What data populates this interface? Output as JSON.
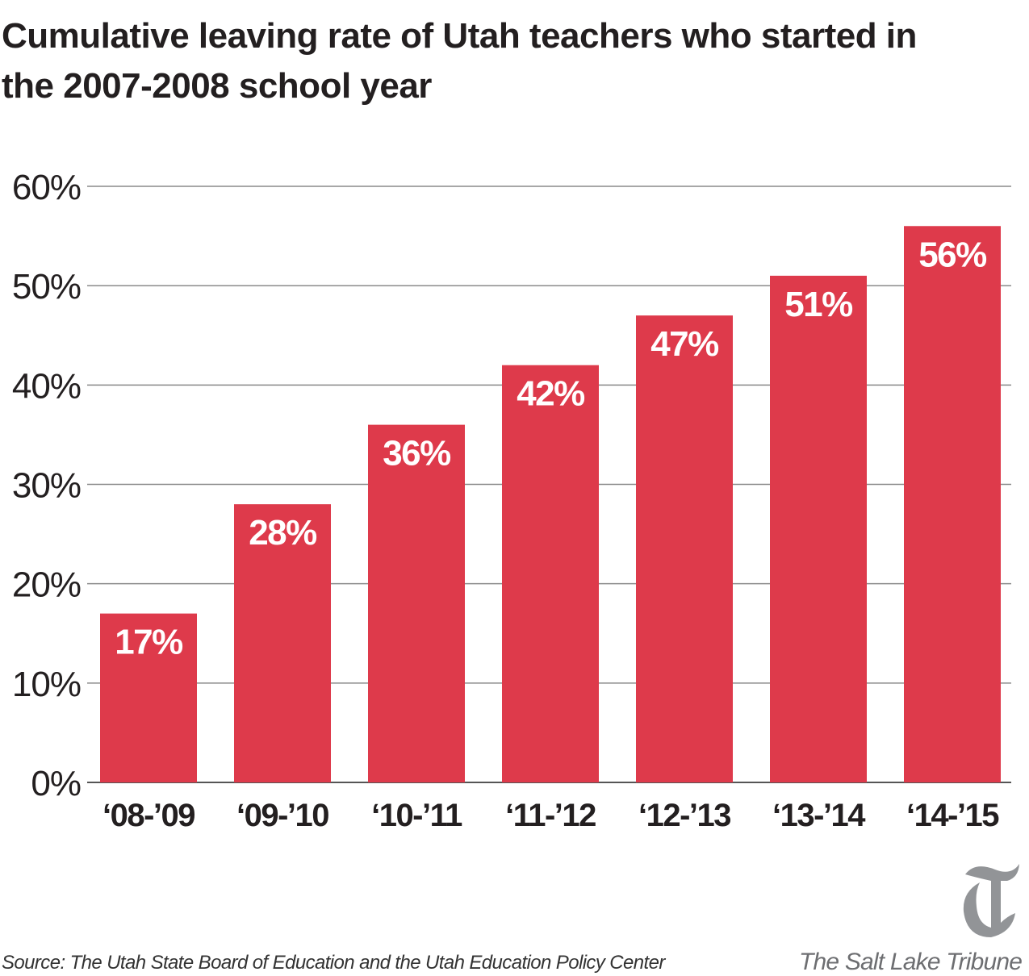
{
  "chart_data": {
    "type": "bar",
    "title": "Cumulative leaving rate of Utah teachers who started in the 2007-2008 school year",
    "categories": [
      "‘08-’09",
      "‘09-’10",
      "‘10-’11",
      "‘11-’12",
      "‘12-’13",
      "‘13-’14",
      "‘14-’15"
    ],
    "values": [
      17,
      28,
      36,
      42,
      47,
      51,
      56
    ],
    "data_labels": [
      "17%",
      "28%",
      "36%",
      "42%",
      "47%",
      "51%",
      "56%"
    ],
    "xlabel": "",
    "ylabel": "",
    "ylim": [
      0,
      60
    ],
    "yticks": [
      0,
      10,
      20,
      30,
      40,
      50,
      60
    ],
    "ytick_labels": [
      "0%",
      "10%",
      "20%",
      "30%",
      "40%",
      "50%",
      "60%"
    ],
    "grid": true,
    "bar_color": "#de3a4b"
  },
  "footer": {
    "source": "Source: The Utah State Board of Education and the Utah Education Policy Center",
    "brand": "The Salt Lake Tribune"
  }
}
